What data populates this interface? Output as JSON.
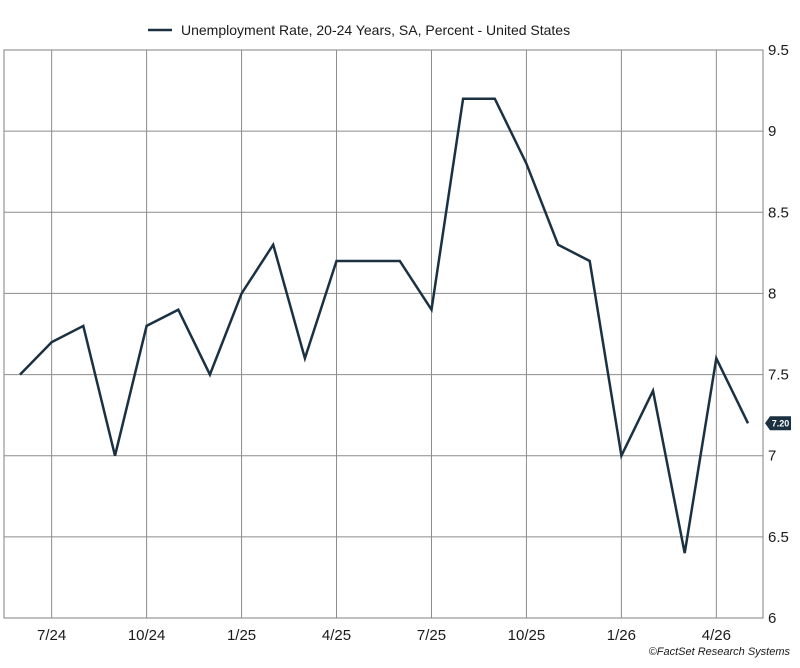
{
  "chart_data": {
    "type": "line",
    "legend": {
      "label": "Unemployment Rate, 20-24 Years, SA, Percent - United States",
      "placement": "top-center"
    },
    "series": [
      {
        "name": "Unemployment Rate, 20-24 Years, SA, Percent - United States",
        "color": "#1b3142",
        "x": [
          "2024-06",
          "2024-07",
          "2024-08",
          "2024-09",
          "2024-10",
          "2024-11",
          "2024-12",
          "2025-01",
          "2025-02",
          "2025-03",
          "2025-04",
          "2025-05",
          "2025-06",
          "2025-07",
          "2025-08",
          "2025-09",
          "2025-10",
          "2025-11",
          "2025-12",
          "2026-01",
          "2026-02",
          "2026-03",
          "2026-04",
          "2026-05"
        ],
        "values": [
          7.5,
          7.7,
          7.8,
          7.0,
          7.8,
          7.9,
          7.5,
          8.0,
          8.3,
          7.6,
          8.2,
          8.2,
          8.2,
          7.9,
          9.2,
          9.2,
          8.8,
          8.3,
          8.2,
          7.0,
          7.4,
          6.4,
          7.6,
          7.2
        ]
      }
    ],
    "x_ticks": [
      {
        "label": "7/24",
        "date": "2024-07"
      },
      {
        "label": "10/24",
        "date": "2024-10"
      },
      {
        "label": "1/25",
        "date": "2025-01"
      },
      {
        "label": "4/25",
        "date": "2025-04"
      },
      {
        "label": "7/25",
        "date": "2025-07"
      },
      {
        "label": "10/25",
        "date": "2025-10"
      },
      {
        "label": "1/26",
        "date": "2026-01"
      },
      {
        "label": "4/26",
        "date": "2026-04"
      }
    ],
    "y_ticks": [
      "9.5",
      "9",
      "8.5",
      "8",
      "7.5",
      "7",
      "6.5",
      "6"
    ],
    "ylim": [
      6,
      9.5
    ],
    "y_axis_side": "right",
    "grid": true,
    "last_value_badge": {
      "text": "7.20",
      "color": "#1b3142"
    },
    "credit": "©FactSet Research Systems"
  }
}
